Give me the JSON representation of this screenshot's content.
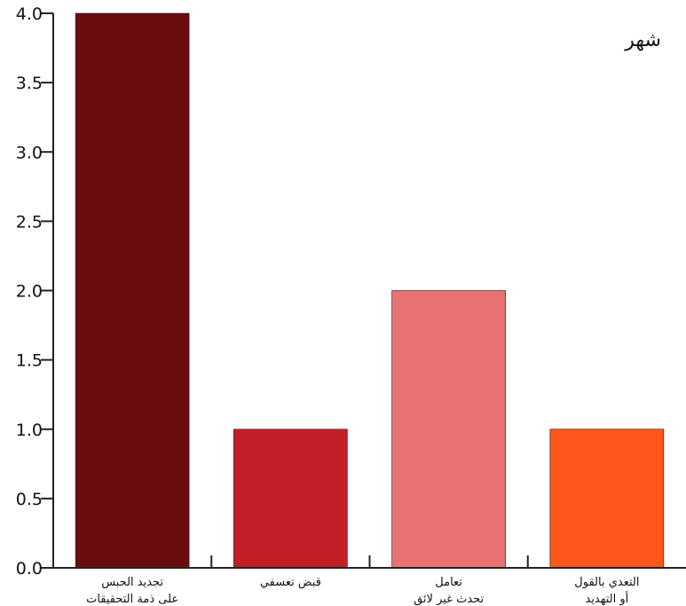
{
  "chart_data": {
    "type": "bar",
    "title": "شهر",
    "xlabel": "",
    "ylabel": "",
    "ylim": [
      0,
      4
    ],
    "yticks": [
      "0.0",
      "0.5",
      "1.0",
      "1.5",
      "2.0",
      "2.5",
      "3.0",
      "3.5",
      "4.0"
    ],
    "categories": [
      [
        "تجديد الحبس",
        "على ذمة التحقيقات"
      ],
      [
        "قبض تعسفي"
      ],
      [
        "تعامل",
        "تحدث غير لائق"
      ],
      [
        "التعدي بالقول",
        "أو التهديد"
      ]
    ],
    "values": [
      4,
      1,
      2,
      1
    ],
    "colors": [
      "#6b0c0f",
      "#c21e25",
      "#e87272",
      "#ff5719"
    ],
    "grid": false,
    "legend": "none"
  }
}
